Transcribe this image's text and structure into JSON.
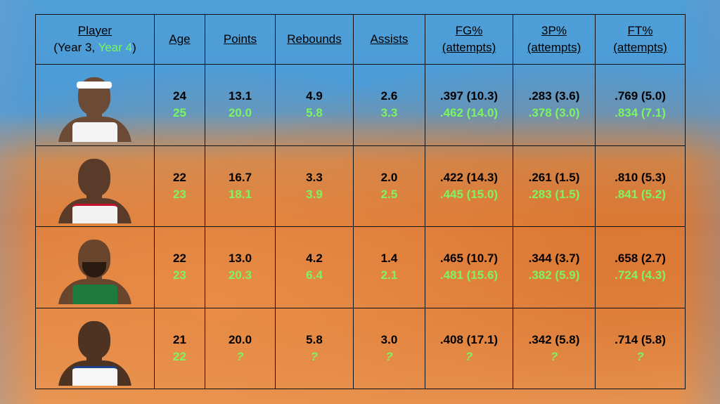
{
  "headers": {
    "player": "Player",
    "player_sub_prefix": "(Year 3, ",
    "player_sub_year4": "Year 4",
    "player_sub_suffix": ")",
    "age": "Age",
    "points": "Points",
    "rebounds": "Rebounds",
    "assists": "Assists",
    "fg": "FG%",
    "fg_sub": "(attempts)",
    "tp": "3P%",
    "tp_sub": "(attempts)",
    "ft": "FT%",
    "ft_sub": "(attempts)"
  },
  "colors": {
    "year3": "#000000",
    "year4": "#7cf55e"
  },
  "rows": [
    {
      "photo": "player-headshot-miami-uniform",
      "y3": {
        "age": "24",
        "points": "13.1",
        "rebounds": "4.9",
        "assists": "2.6",
        "fg": ".397 (10.3)",
        "tp": ".283 (3.6)",
        "ft": ".769 (5.0)"
      },
      "y4": {
        "age": "25",
        "points": "20.0",
        "rebounds": "5.8",
        "assists": "3.3",
        "fg": ".462 (14.0)",
        "tp": ".378 (3.0)",
        "ft": ".834 (7.1)"
      }
    },
    {
      "photo": "player-headshot-chicago-uniform",
      "y3": {
        "age": "22",
        "points": "16.7",
        "rebounds": "3.3",
        "assists": "2.0",
        "fg": ".422 (14.3)",
        "tp": ".261 (1.5)",
        "ft": ".810 (5.3)"
      },
      "y4": {
        "age": "23",
        "points": "18.1",
        "rebounds": "3.9",
        "assists": "2.5",
        "fg": ".445 (15.0)",
        "tp": ".283 (1.5)",
        "ft": ".841 (5.2)"
      }
    },
    {
      "photo": "player-headshot-boston-uniform",
      "y3": {
        "age": "22",
        "points": "13.0",
        "rebounds": "4.2",
        "assists": "1.4",
        "fg": ".465 (10.7)",
        "tp": ".344 (3.7)",
        "ft": ".658 (2.7)"
      },
      "y4": {
        "age": "23",
        "points": "20.3",
        "rebounds": "6.4",
        "assists": "2.1",
        "fg": ".481 (15.6)",
        "tp": ".382 (5.9)",
        "ft": ".724 (4.3)"
      }
    },
    {
      "photo": "player-headshot-newyork-uniform",
      "y3": {
        "age": "21",
        "points": "20.0",
        "rebounds": "5.8",
        "assists": "3.0",
        "fg": ".408 (17.1)",
        "tp": ".342 (5.8)",
        "ft": ".714 (5.8)"
      },
      "y4": {
        "age": "22",
        "points": "?",
        "rebounds": "?",
        "assists": "?",
        "fg": "?",
        "tp": "?",
        "ft": "?"
      }
    }
  ]
}
